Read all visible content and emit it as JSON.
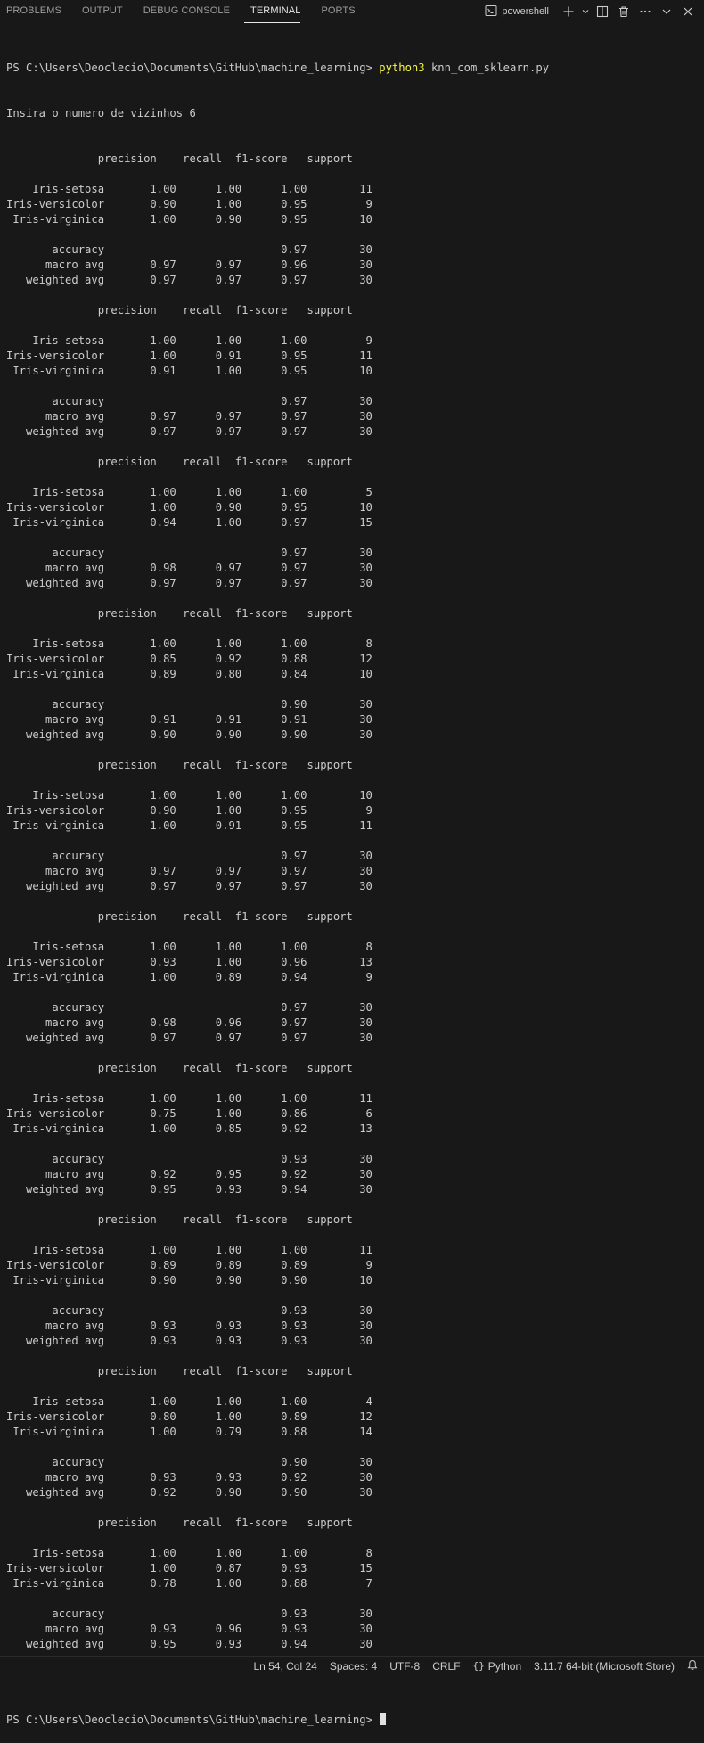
{
  "panel_tabs": [
    "PROBLEMS",
    "OUTPUT",
    "DEBUG CONSOLE",
    "TERMINAL",
    "PORTS"
  ],
  "active_tab": "TERMINAL",
  "shell_label": "powershell",
  "colors": {
    "background": "#181818",
    "text": "#cccccc",
    "command_highlight": "#f5f543",
    "active_tab_underline": "#e7e7e7"
  },
  "icons": [
    "terminal-icon",
    "plus-icon",
    "chevron-down-icon",
    "split-icon",
    "trash-icon",
    "more-icon",
    "chevron-down-icon",
    "close-icon",
    "python-braces-icon",
    "bell-icon"
  ],
  "terminal": {
    "prompt": "PS C:\\Users\\Deoclecio\\Documents\\GitHub\\machine_learning> ",
    "command": "python3",
    "args": " knn_com_sklearn.py",
    "input_line": "Insira o numero de vizinhos 6",
    "output_lines": [
      "              precision    recall  f1-score   support",
      "",
      "    Iris-setosa       1.00      1.00      1.00        11",
      "Iris-versicolor       0.90      1.00      0.95         9",
      " Iris-virginica       1.00      0.90      0.95        10",
      "",
      "       accuracy                           0.97        30",
      "      macro avg       0.97      0.97      0.96        30",
      "   weighted avg       0.97      0.97      0.97        30",
      "",
      "              precision    recall  f1-score   support",
      "",
      "    Iris-setosa       1.00      1.00      1.00         9",
      "Iris-versicolor       1.00      0.91      0.95        11",
      " Iris-virginica       0.91      1.00      0.95        10",
      "",
      "       accuracy                           0.97        30",
      "      macro avg       0.97      0.97      0.97        30",
      "   weighted avg       0.97      0.97      0.97        30",
      "",
      "              precision    recall  f1-score   support",
      "",
      "    Iris-setosa       1.00      1.00      1.00         5",
      "Iris-versicolor       1.00      0.90      0.95        10",
      " Iris-virginica       0.94      1.00      0.97        15",
      "",
      "       accuracy                           0.97        30",
      "      macro avg       0.98      0.97      0.97        30",
      "   weighted avg       0.97      0.97      0.97        30",
      "",
      "              precision    recall  f1-score   support",
      "",
      "    Iris-setosa       1.00      1.00      1.00         8",
      "Iris-versicolor       0.85      0.92      0.88        12",
      " Iris-virginica       0.89      0.80      0.84        10",
      "",
      "       accuracy                           0.90        30",
      "      macro avg       0.91      0.91      0.91        30",
      "   weighted avg       0.90      0.90      0.90        30",
      "",
      "              precision    recall  f1-score   support",
      "",
      "    Iris-setosa       1.00      1.00      1.00        10",
      "Iris-versicolor       0.90      1.00      0.95         9",
      " Iris-virginica       1.00      0.91      0.95        11",
      "",
      "       accuracy                           0.97        30",
      "      macro avg       0.97      0.97      0.97        30",
      "   weighted avg       0.97      0.97      0.97        30",
      "",
      "              precision    recall  f1-score   support",
      "",
      "    Iris-setosa       1.00      1.00      1.00         8",
      "Iris-versicolor       0.93      1.00      0.96        13",
      " Iris-virginica       1.00      0.89      0.94         9",
      "",
      "       accuracy                           0.97        30",
      "      macro avg       0.98      0.96      0.97        30",
      "   weighted avg       0.97      0.97      0.97        30",
      "",
      "              precision    recall  f1-score   support",
      "",
      "    Iris-setosa       1.00      1.00      1.00        11",
      "Iris-versicolor       0.75      1.00      0.86         6",
      " Iris-virginica       1.00      0.85      0.92        13",
      "",
      "       accuracy                           0.93        30",
      "      macro avg       0.92      0.95      0.92        30",
      "   weighted avg       0.95      0.93      0.94        30",
      "",
      "              precision    recall  f1-score   support",
      "",
      "    Iris-setosa       1.00      1.00      1.00        11",
      "Iris-versicolor       0.89      0.89      0.89         9",
      " Iris-virginica       0.90      0.90      0.90        10",
      "",
      "       accuracy                           0.93        30",
      "      macro avg       0.93      0.93      0.93        30",
      "   weighted avg       0.93      0.93      0.93        30",
      "",
      "              precision    recall  f1-score   support",
      "",
      "    Iris-setosa       1.00      1.00      1.00         4",
      "Iris-versicolor       0.80      1.00      0.89        12",
      " Iris-virginica       1.00      0.79      0.88        14",
      "",
      "       accuracy                           0.90        30",
      "      macro avg       0.93      0.93      0.92        30",
      "   weighted avg       0.92      0.90      0.90        30",
      "",
      "              precision    recall  f1-score   support",
      "",
      "    Iris-setosa       1.00      1.00      1.00         8",
      "Iris-versicolor       1.00      0.87      0.93        15",
      " Iris-virginica       0.78      1.00      0.88         7",
      "",
      "       accuracy                           0.93        30",
      "      macro avg       0.93      0.96      0.93        30",
      "   weighted avg       0.95      0.93      0.94        30",
      "",
      ""
    ],
    "final_prompt": "PS C:\\Users\\Deoclecio\\Documents\\GitHub\\machine_learning> "
  },
  "statusbar": {
    "cursor_position": "Ln 54, Col 24",
    "indentation": "Spaces: 4",
    "encoding": "UTF-8",
    "line_ending": "CRLF",
    "language": "Python",
    "interpreter": "3.11.7 64-bit (Microsoft Store)"
  }
}
